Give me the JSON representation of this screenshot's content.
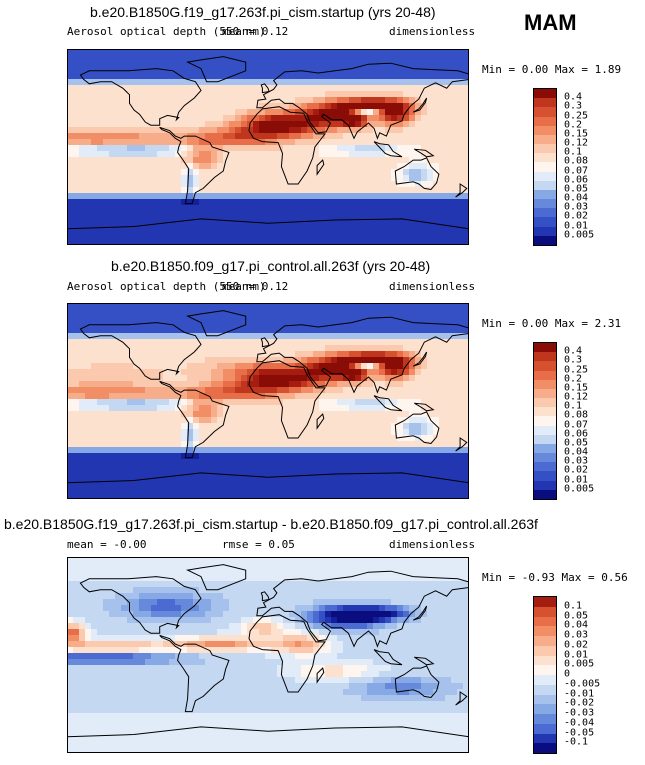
{
  "season": "MAM",
  "palette_pos": [
    "#fef5ef",
    "#fde1cf",
    "#fbc9ad",
    "#f8ad8a",
    "#f28e66",
    "#e76e49",
    "#d6512f",
    "#c0351d",
    "#a51d10",
    "#8a0c07"
  ],
  "palette_neg": [
    "#e1ecf8",
    "#c5d8f2",
    "#a6c2ec",
    "#86a8e5",
    "#6789dc",
    "#4b6bd2",
    "#3450c4",
    "#2236b2",
    "#141f9a",
    "#0a0d7e"
  ],
  "panels": [
    {
      "title": "b.e20.B1850G.f19_g17.263f.pi_cism.startup (yrs 20-48)",
      "left_label": "Aerosol optical depth (550 nm)",
      "mean_text": "mean=   0.12",
      "units": "dimensionless",
      "minmax": "Min =   0.00 Max =   1.89",
      "colorbar": [
        "0.4",
        "0.3",
        "0.25",
        "0.2",
        "0.15",
        "0.12",
        "0.1",
        "0.08",
        "0.07",
        "0.06",
        "0.05",
        "0.04",
        "0.03",
        "0.02",
        "0.01",
        "0.005"
      ],
      "colorbar_colors": [
        "#8a0c07",
        "#c0351d",
        "#d6512f",
        "#e76e49",
        "#f28e66",
        "#f8ad8a",
        "#fbc9ad",
        "#fde1cf",
        "#fef5ef",
        "#e1ecf8",
        "#c5d8f2",
        "#86a8e5",
        "#6789dc",
        "#4b6bd2",
        "#3450c4",
        "#2236b2",
        "#0a0d7e"
      ]
    },
    {
      "title": "b.e20.B1850.f09_g17.pi_control.all.263f (yrs 20-48)",
      "left_label": "Aerosol optical depth (550 nm)",
      "mean_text": "mean=   0.12",
      "units": "dimensionless",
      "minmax": "Min =   0.00 Max =   2.31",
      "colorbar": [
        "0.4",
        "0.3",
        "0.25",
        "0.2",
        "0.15",
        "0.12",
        "0.1",
        "0.08",
        "0.07",
        "0.06",
        "0.05",
        "0.04",
        "0.03",
        "0.02",
        "0.01",
        "0.005"
      ],
      "colorbar_colors": [
        "#8a0c07",
        "#c0351d",
        "#d6512f",
        "#e76e49",
        "#f28e66",
        "#f8ad8a",
        "#fbc9ad",
        "#fde1cf",
        "#fef5ef",
        "#e1ecf8",
        "#c5d8f2",
        "#86a8e5",
        "#6789dc",
        "#4b6bd2",
        "#3450c4",
        "#2236b2",
        "#0a0d7e"
      ]
    },
    {
      "title": "b.e20.B1850G.f19_g17.263f.pi_cism.startup - b.e20.B1850.f09_g17.pi_control.all.263f",
      "left_label": "mean =  -0.00",
      "mean_text": "rmse =   0.05",
      "units": "dimensionless",
      "minmax": "Min =  -0.93 Max =   0.56",
      "colorbar": [
        "0.1",
        "0.05",
        "0.04",
        "0.03",
        "0.02",
        "0.01",
        "0.005",
        "0",
        "-0.005",
        "-0.01",
        "-0.02",
        "-0.03",
        "-0.04",
        "-0.05",
        "-0.1"
      ],
      "colorbar_colors": [
        "#a51d10",
        "#d6512f",
        "#e76e49",
        "#f28e66",
        "#f8ad8a",
        "#fbc9ad",
        "#fde1cf",
        "#fef5ef",
        "#e1ecf8",
        "#c5d8f2",
        "#a6c2ec",
        "#86a8e5",
        "#6789dc",
        "#4b6bd2",
        "#2236b2",
        "#0a0d7e"
      ]
    }
  ]
}
